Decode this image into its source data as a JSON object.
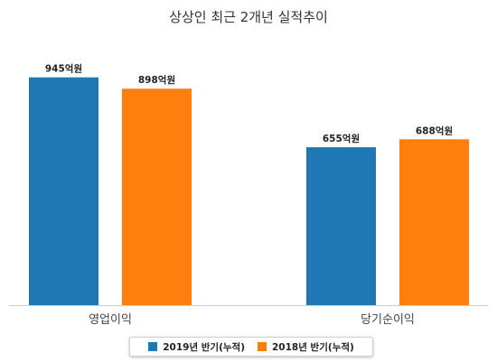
{
  "chart_data": {
    "type": "bar",
    "title": "상상인 최근 2개년 실적추이",
    "categories": [
      "영업이익",
      "당기순이익"
    ],
    "series": [
      {
        "name": "2019년 반기(누적)",
        "color": "#1f77b4",
        "values": [
          945,
          655
        ],
        "labels": [
          "945억원",
          "655억원"
        ]
      },
      {
        "name": "2018년 반기(누적)",
        "color": "#ff7f0e",
        "values": [
          898,
          688
        ],
        "labels": [
          "898억원",
          "688억원"
        ]
      }
    ],
    "ylim": [
      0,
      1000
    ],
    "grid": false,
    "legend_position": "bottom"
  }
}
